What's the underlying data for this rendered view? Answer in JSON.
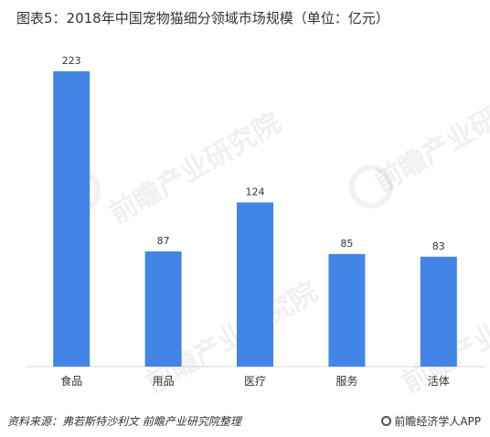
{
  "header": {
    "title": "图表5：2018年中国宠物猫细分领域市场规模（单位：亿元）"
  },
  "chart_data": {
    "type": "bar",
    "title": "图表5：2018年中国宠物猫细分领域市场规模（单位：亿元）",
    "categories": [
      "食品",
      "用品",
      "医疗",
      "服务",
      "活体"
    ],
    "values": [
      223,
      87,
      124,
      85,
      83
    ],
    "xlabel": "",
    "ylabel": "",
    "ylim": [
      0,
      223
    ],
    "grid": false,
    "legend": "none",
    "bar_color": "#4285e6"
  },
  "watermark": {
    "text": "前瞻产业研究院"
  },
  "footer": {
    "source": "资料来源：弗若斯特沙利文 前瞻产业研究院整理",
    "brand": "前瞻经济学人APP",
    "brand_icon": "qianzhan-logo-icon"
  }
}
